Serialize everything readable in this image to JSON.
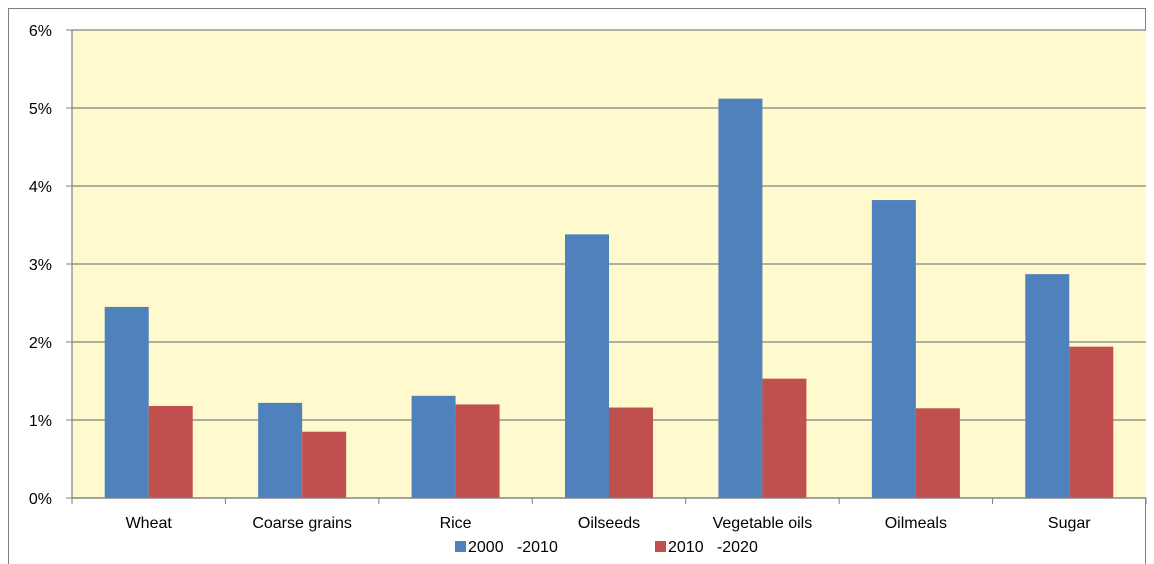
{
  "colors": {
    "plot_background": "#fffacd",
    "gridline": "#808080",
    "series_2000_2010": "#4f81bd",
    "series_2010_2020": "#c0504d"
  },
  "chart_data": {
    "type": "bar",
    "title": "",
    "xlabel": "",
    "ylabel": "",
    "categories": [
      "Wheat",
      "Coarse grains",
      "Rice",
      "Oilseeds",
      "Vegetable oils",
      "Oilmeals",
      "Sugar"
    ],
    "series": [
      {
        "name": "2000   -2010",
        "color": "#4f81bd",
        "values": [
          2.45,
          1.22,
          1.31,
          3.38,
          5.12,
          3.82,
          2.87
        ]
      },
      {
        "name": "2010   -2020",
        "color": "#c0504d",
        "values": [
          1.18,
          0.85,
          1.2,
          1.16,
          1.53,
          1.15,
          1.94
        ]
      }
    ],
    "ylim": [
      0,
      6
    ],
    "yticks": [
      0,
      1,
      2,
      3,
      4,
      5,
      6
    ],
    "ytick_labels": [
      "0%",
      "1%",
      "2%",
      "3%",
      "4%",
      "5%",
      "6%"
    ],
    "grid": true,
    "legend": "bottom"
  }
}
